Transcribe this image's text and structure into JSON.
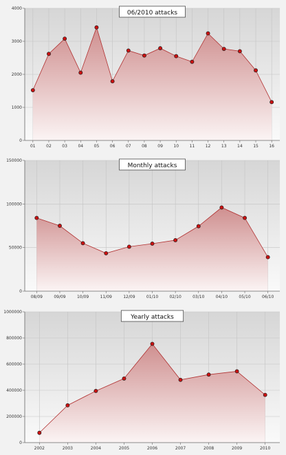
{
  "chart_data": [
    {
      "type": "area",
      "title": "06/2010 attacks",
      "categories": [
        "01",
        "02",
        "03",
        "04",
        "05",
        "06",
        "07",
        "08",
        "09",
        "10",
        "11",
        "12",
        "13",
        "14",
        "15",
        "16"
      ],
      "values": [
        1520,
        2620,
        3080,
        2050,
        3420,
        1790,
        2720,
        2570,
        2790,
        2550,
        2380,
        3240,
        2770,
        2700,
        2120,
        1160
      ],
      "ylim": [
        0,
        4000
      ],
      "yticks": [
        "0",
        "1000",
        "2000",
        "3000",
        "4000"
      ],
      "grid": true
    },
    {
      "type": "area",
      "title": "Monthly attacks",
      "categories": [
        "08/09",
        "09/09",
        "10/09",
        "11/09",
        "12/09",
        "01/10",
        "02/10",
        "03/10",
        "04/10",
        "05/10",
        "06/10"
      ],
      "values": [
        84000,
        75000,
        55000,
        43500,
        51000,
        54500,
        58500,
        74500,
        96000,
        84000,
        39000
      ],
      "ylim": [
        0,
        150000
      ],
      "yticks": [
        "0",
        "50000",
        "100000",
        "150000"
      ],
      "grid": true
    },
    {
      "type": "area",
      "title": "Yearly attacks",
      "categories": [
        "2002",
        "2003",
        "2004",
        "2005",
        "2006",
        "2007",
        "2008",
        "2009",
        "2010"
      ],
      "values": [
        75000,
        285000,
        395000,
        490000,
        755000,
        480000,
        520000,
        545000,
        365000
      ],
      "ylim": [
        0,
        1000000
      ],
      "yticks": [
        "0",
        "200000",
        "400000",
        "600000",
        "800000",
        "1000000"
      ],
      "grid": true
    }
  ],
  "colors": {
    "line": "#b03030",
    "marker": "#cc1111",
    "fill_top": "#cf8f8f",
    "fill_bottom": "#fbf4f4",
    "plot_top": "#d6d6d6",
    "plot_bottom": "#fafafa",
    "grid": "#c4c4c4",
    "axis": "#666666"
  }
}
